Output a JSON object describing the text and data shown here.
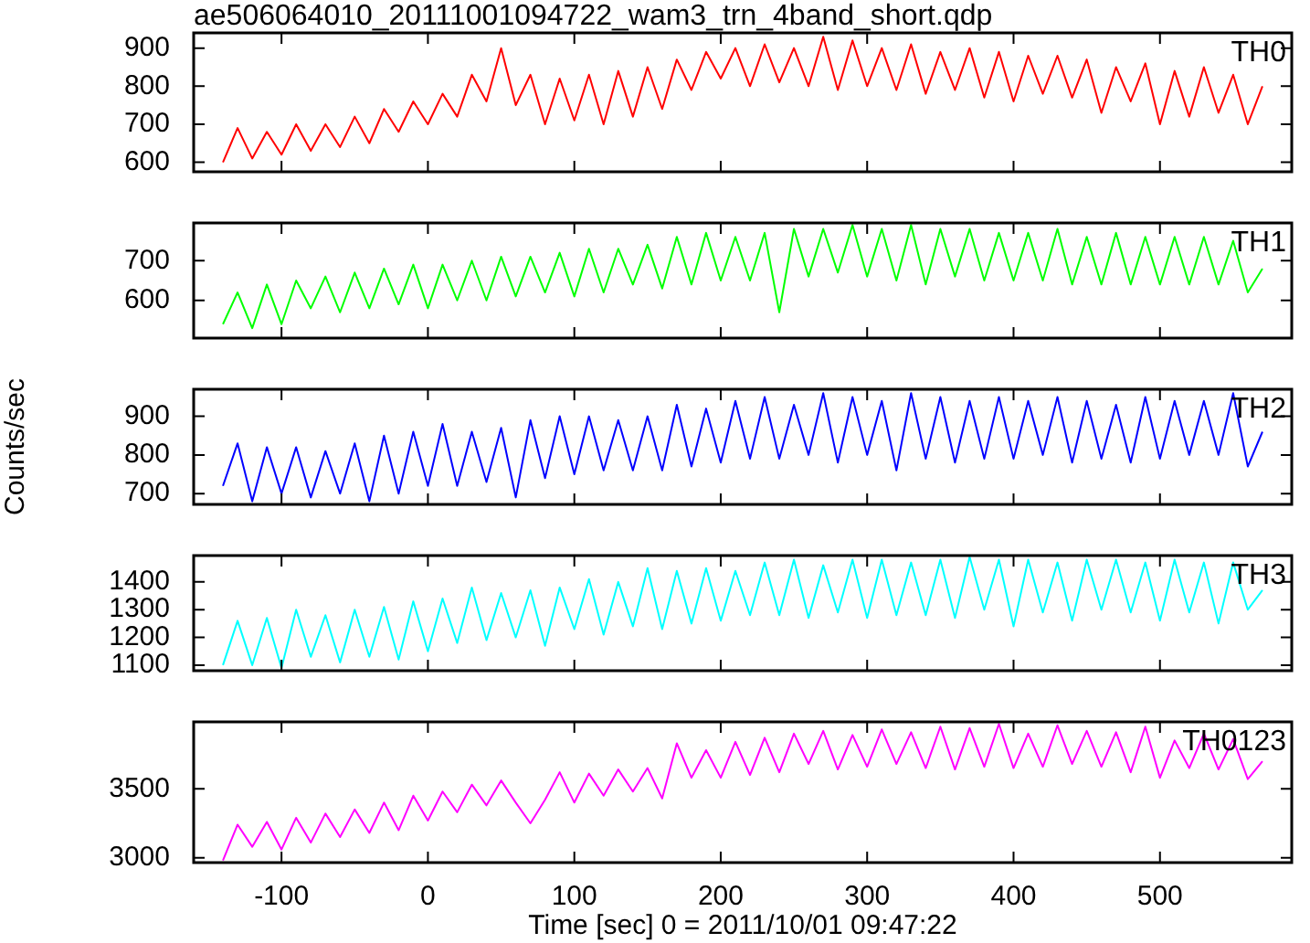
{
  "chart_data": [
    {
      "type": "line",
      "title": "ae506064010_20111001094722_wam3_trn_4band_short.qdp",
      "x": [
        -140,
        -130,
        -120,
        -110,
        -100,
        -90,
        -80,
        -70,
        -60,
        -50,
        -40,
        -30,
        -20,
        -10,
        0,
        10,
        20,
        30,
        40,
        50,
        60,
        70,
        80,
        90,
        100,
        110,
        120,
        130,
        140,
        150,
        160,
        170,
        180,
        190,
        200,
        210,
        220,
        230,
        240,
        250,
        260,
        270,
        280,
        290,
        300,
        310,
        320,
        330,
        340,
        350,
        360,
        370,
        380,
        390,
        400,
        410,
        420,
        430,
        440,
        450,
        460,
        470,
        480,
        490,
        500,
        510,
        520,
        530,
        540,
        550,
        560,
        570
      ],
      "series": [
        {
          "name": "TH0",
          "color": "#ff0000",
          "values": [
            600,
            690,
            610,
            680,
            620,
            700,
            630,
            700,
            640,
            720,
            650,
            740,
            680,
            760,
            700,
            780,
            720,
            830,
            760,
            900,
            750,
            830,
            700,
            820,
            710,
            830,
            700,
            840,
            720,
            850,
            740,
            870,
            790,
            890,
            820,
            900,
            800,
            910,
            810,
            900,
            800,
            930,
            790,
            920,
            800,
            900,
            790,
            910,
            780,
            890,
            790,
            900,
            770,
            890,
            760,
            880,
            780,
            880,
            770,
            870,
            730,
            850,
            760,
            860,
            700,
            840,
            720,
            850,
            730,
            830,
            700,
            800
          ]
        }
      ],
      "xlim": [
        -160,
        590
      ],
      "xticks": [
        -100,
        0,
        100,
        200,
        300,
        400,
        500
      ],
      "ylim": [
        575,
        940
      ],
      "yticks": [
        600,
        700,
        800,
        900
      ],
      "tick_labels": "y"
    },
    {
      "type": "line",
      "x": [
        -140,
        -130,
        -120,
        -110,
        -100,
        -90,
        -80,
        -70,
        -60,
        -50,
        -40,
        -30,
        -20,
        -10,
        0,
        10,
        20,
        30,
        40,
        50,
        60,
        70,
        80,
        90,
        100,
        110,
        120,
        130,
        140,
        150,
        160,
        170,
        180,
        190,
        200,
        210,
        220,
        230,
        240,
        250,
        260,
        270,
        280,
        290,
        300,
        310,
        320,
        330,
        340,
        350,
        360,
        370,
        380,
        390,
        400,
        410,
        420,
        430,
        440,
        450,
        460,
        470,
        480,
        490,
        500,
        510,
        520,
        530,
        540,
        550,
        560,
        570
      ],
      "series": [
        {
          "name": "TH1",
          "color": "#00ff00",
          "values": [
            540,
            620,
            530,
            640,
            540,
            650,
            580,
            660,
            570,
            670,
            580,
            680,
            590,
            690,
            580,
            690,
            600,
            700,
            600,
            710,
            610,
            710,
            620,
            720,
            610,
            730,
            620,
            730,
            640,
            740,
            630,
            760,
            640,
            770,
            650,
            760,
            650,
            770,
            570,
            780,
            660,
            780,
            670,
            790,
            660,
            780,
            650,
            790,
            640,
            780,
            660,
            780,
            650,
            770,
            650,
            770,
            650,
            780,
            640,
            760,
            640,
            770,
            640,
            760,
            640,
            760,
            640,
            760,
            640,
            750,
            620,
            680
          ]
        }
      ],
      "xlim": [
        -160,
        590
      ],
      "xticks": [
        -100,
        0,
        100,
        200,
        300,
        400,
        500
      ],
      "ylim": [
        505,
        795
      ],
      "yticks": [
        600,
        700
      ],
      "tick_labels": "y"
    },
    {
      "type": "line",
      "ylabel": "Counts/sec",
      "x": [
        -140,
        -130,
        -120,
        -110,
        -100,
        -90,
        -80,
        -70,
        -60,
        -50,
        -40,
        -30,
        -20,
        -10,
        0,
        10,
        20,
        30,
        40,
        50,
        60,
        70,
        80,
        90,
        100,
        110,
        120,
        130,
        140,
        150,
        160,
        170,
        180,
        190,
        200,
        210,
        220,
        230,
        240,
        250,
        260,
        270,
        280,
        290,
        300,
        310,
        320,
        330,
        340,
        350,
        360,
        370,
        380,
        390,
        400,
        410,
        420,
        430,
        440,
        450,
        460,
        470,
        480,
        490,
        500,
        510,
        520,
        530,
        540,
        550,
        560,
        570
      ],
      "series": [
        {
          "name": "TH2",
          "color": "#0000ff",
          "values": [
            720,
            830,
            680,
            820,
            700,
            820,
            690,
            810,
            700,
            830,
            680,
            850,
            700,
            860,
            720,
            880,
            720,
            860,
            730,
            870,
            690,
            890,
            740,
            900,
            750,
            900,
            760,
            890,
            760,
            900,
            760,
            930,
            770,
            920,
            780,
            940,
            790,
            950,
            790,
            930,
            800,
            960,
            780,
            950,
            800,
            940,
            760,
            960,
            790,
            950,
            780,
            940,
            790,
            950,
            790,
            940,
            800,
            950,
            780,
            940,
            790,
            930,
            780,
            950,
            790,
            940,
            800,
            940,
            800,
            960,
            770,
            860
          ]
        }
      ],
      "xlim": [
        -160,
        590
      ],
      "xticks": [
        -100,
        0,
        100,
        200,
        300,
        400,
        500
      ],
      "ylim": [
        672,
        970
      ],
      "yticks": [
        700,
        800,
        900
      ],
      "tick_labels": "y"
    },
    {
      "type": "line",
      "x": [
        -140,
        -130,
        -120,
        -110,
        -100,
        -90,
        -80,
        -70,
        -60,
        -50,
        -40,
        -30,
        -20,
        -10,
        0,
        10,
        20,
        30,
        40,
        50,
        60,
        70,
        80,
        90,
        100,
        110,
        120,
        130,
        140,
        150,
        160,
        170,
        180,
        190,
        200,
        210,
        220,
        230,
        240,
        250,
        260,
        270,
        280,
        290,
        300,
        310,
        320,
        330,
        340,
        350,
        360,
        370,
        380,
        390,
        400,
        410,
        420,
        430,
        440,
        450,
        460,
        470,
        480,
        490,
        500,
        510,
        520,
        530,
        540,
        550,
        560,
        570
      ],
      "series": [
        {
          "name": "TH3",
          "color": "#00ffff",
          "values": [
            1100,
            1260,
            1100,
            1270,
            1090,
            1300,
            1130,
            1280,
            1110,
            1300,
            1130,
            1310,
            1120,
            1330,
            1150,
            1340,
            1180,
            1380,
            1190,
            1360,
            1200,
            1370,
            1170,
            1380,
            1230,
            1410,
            1210,
            1400,
            1240,
            1450,
            1230,
            1440,
            1250,
            1450,
            1260,
            1440,
            1280,
            1470,
            1280,
            1480,
            1270,
            1460,
            1290,
            1480,
            1270,
            1480,
            1280,
            1470,
            1280,
            1480,
            1270,
            1490,
            1300,
            1480,
            1240,
            1480,
            1290,
            1470,
            1260,
            1480,
            1300,
            1480,
            1290,
            1470,
            1260,
            1480,
            1290,
            1470,
            1250,
            1470,
            1300,
            1370
          ]
        }
      ],
      "xlim": [
        -160,
        590
      ],
      "xticks": [
        -100,
        0,
        100,
        200,
        300,
        400,
        500
      ],
      "ylim": [
        1080,
        1495
      ],
      "yticks": [
        1100,
        1200,
        1300,
        1400
      ],
      "tick_labels": "y"
    },
    {
      "type": "line",
      "xlabel": "Time [sec] 0 = 2011/10/01 09:47:22",
      "x": [
        -140,
        -130,
        -120,
        -110,
        -100,
        -90,
        -80,
        -70,
        -60,
        -50,
        -40,
        -30,
        -20,
        -10,
        0,
        10,
        20,
        30,
        40,
        50,
        60,
        70,
        80,
        90,
        100,
        110,
        120,
        130,
        140,
        150,
        160,
        170,
        180,
        190,
        200,
        210,
        220,
        230,
        240,
        250,
        260,
        270,
        280,
        290,
        300,
        310,
        320,
        330,
        340,
        350,
        360,
        370,
        380,
        390,
        400,
        410,
        420,
        430,
        440,
        450,
        460,
        470,
        480,
        490,
        500,
        510,
        520,
        530,
        540,
        550,
        560,
        570
      ],
      "series": [
        {
          "name": "TH0123",
          "color": "#ff00ff",
          "values": [
            2980,
            3240,
            3080,
            3260,
            3060,
            3290,
            3110,
            3320,
            3150,
            3350,
            3180,
            3400,
            3200,
            3450,
            3270,
            3480,
            3330,
            3530,
            3380,
            3560,
            3400,
            3250,
            3420,
            3620,
            3400,
            3610,
            3450,
            3640,
            3480,
            3650,
            3430,
            3830,
            3580,
            3780,
            3580,
            3840,
            3600,
            3870,
            3620,
            3900,
            3680,
            3920,
            3640,
            3890,
            3660,
            3930,
            3680,
            3910,
            3650,
            3950,
            3640,
            3940,
            3660,
            3970,
            3650,
            3900,
            3660,
            3960,
            3680,
            3920,
            3660,
            3910,
            3620,
            3950,
            3580,
            3850,
            3650,
            3900,
            3640,
            3860,
            3570,
            3700
          ]
        }
      ],
      "xlim": [
        -160,
        590
      ],
      "xticks": [
        -100,
        0,
        100,
        200,
        300,
        400,
        500
      ],
      "ylim": [
        2965,
        3985
      ],
      "yticks": [
        3000,
        3500
      ]
    }
  ]
}
